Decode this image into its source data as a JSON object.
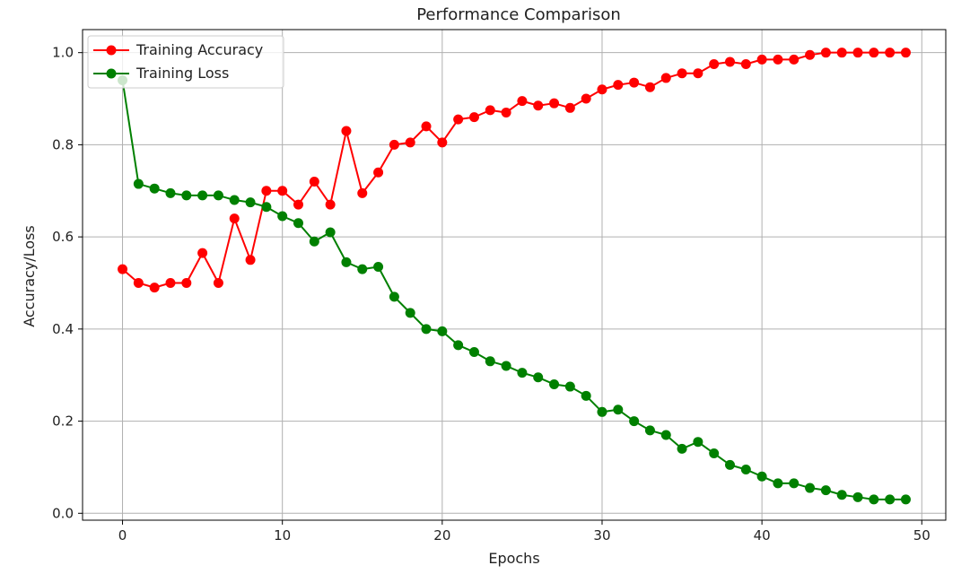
{
  "chart_data": {
    "type": "line",
    "title": "Performance Comparison",
    "xlabel": "Epochs",
    "ylabel": "Accuracy/Loss",
    "xlim": [
      -2.5,
      51.5
    ],
    "ylim": [
      -0.015,
      1.05
    ],
    "xticks": [
      "0",
      "10",
      "20",
      "30",
      "40",
      "50"
    ],
    "xtick_values": [
      0,
      10,
      20,
      30,
      40,
      50
    ],
    "yticks": [
      "0.0",
      "0.2",
      "0.4",
      "0.6",
      "0.8",
      "1.0"
    ],
    "ytick_values": [
      0.0,
      0.2,
      0.4,
      0.6,
      0.8,
      1.0
    ],
    "grid": true,
    "legend_position": "top-left",
    "x": [
      0,
      1,
      2,
      3,
      4,
      5,
      6,
      7,
      8,
      9,
      10,
      11,
      12,
      13,
      14,
      15,
      16,
      17,
      18,
      19,
      20,
      21,
      22,
      23,
      24,
      25,
      26,
      27,
      28,
      29,
      30,
      31,
      32,
      33,
      34,
      35,
      36,
      37,
      38,
      39,
      40,
      41,
      42,
      43,
      44,
      45,
      46,
      47,
      48,
      49
    ],
    "series": [
      {
        "name": "Training Accuracy",
        "color": "#ff0000",
        "values": [
          0.53,
          0.5,
          0.49,
          0.5,
          0.5,
          0.565,
          0.5,
          0.64,
          0.55,
          0.7,
          0.7,
          0.67,
          0.72,
          0.67,
          0.83,
          0.695,
          0.74,
          0.8,
          0.805,
          0.84,
          0.805,
          0.855,
          0.86,
          0.875,
          0.87,
          0.895,
          0.885,
          0.89,
          0.88,
          0.9,
          0.92,
          0.93,
          0.935,
          0.925,
          0.945,
          0.955,
          0.955,
          0.975,
          0.98,
          0.975,
          0.985,
          0.985,
          0.985,
          0.995,
          1.0,
          1.0,
          1.0,
          1.0,
          1.0,
          1.0
        ]
      },
      {
        "name": "Training Loss",
        "color": "#008000",
        "values": [
          0.94,
          0.715,
          0.705,
          0.695,
          0.69,
          0.69,
          0.69,
          0.68,
          0.675,
          0.665,
          0.645,
          0.63,
          0.59,
          0.61,
          0.545,
          0.53,
          0.535,
          0.47,
          0.435,
          0.4,
          0.395,
          0.365,
          0.35,
          0.33,
          0.32,
          0.305,
          0.295,
          0.28,
          0.275,
          0.255,
          0.22,
          0.225,
          0.2,
          0.18,
          0.17,
          0.14,
          0.155,
          0.13,
          0.105,
          0.095,
          0.08,
          0.065,
          0.065,
          0.055,
          0.05,
          0.04,
          0.035,
          0.03,
          0.03,
          0.03
        ]
      }
    ]
  }
}
